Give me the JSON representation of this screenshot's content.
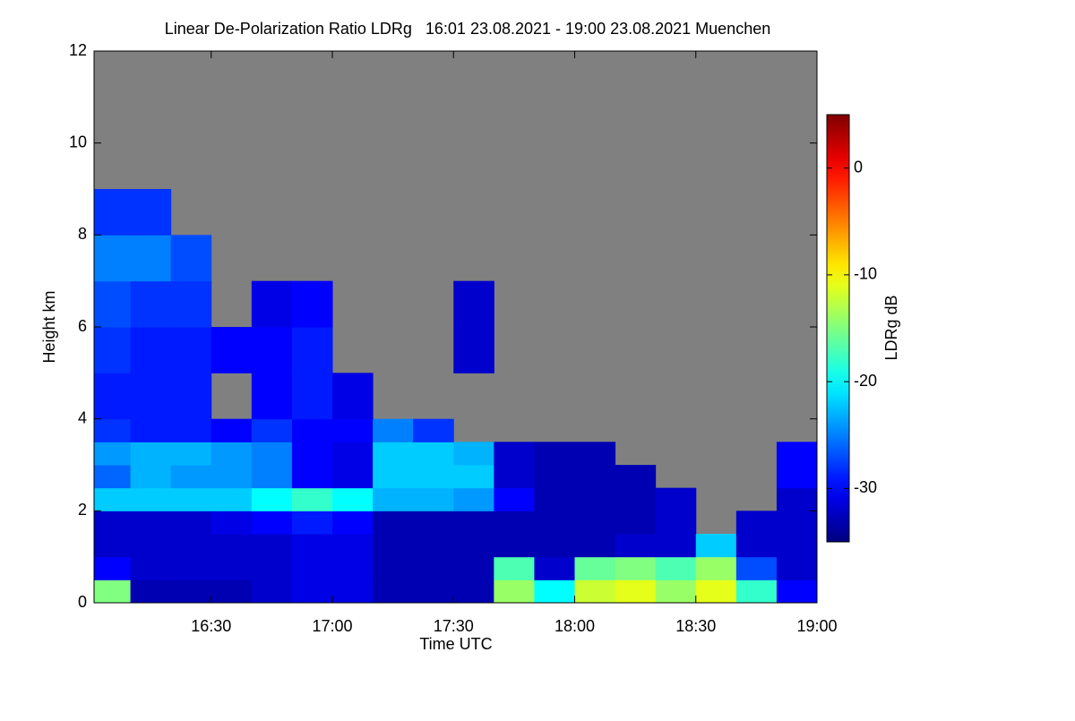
{
  "chart_data": {
    "type": "heatmap",
    "title": "Linear De-Polarization Ratio LDRg   16:01 23.08.2021 - 19:00 23.08.2021 Muenchen",
    "xlabel": "Time UTC",
    "ylabel": "Height km",
    "colorbar_label": "LDRg dB",
    "colormap": "jet",
    "nodata_color": "#808080",
    "xlim": [
      961,
      1140
    ],
    "xticks": [
      {
        "value": 990,
        "label": "16:30"
      },
      {
        "value": 1020,
        "label": "17:00"
      },
      {
        "value": 1050,
        "label": "17:30"
      },
      {
        "value": 1080,
        "label": "18:00"
      },
      {
        "value": 1110,
        "label": "18:30"
      },
      {
        "value": 1140,
        "label": "19:00"
      }
    ],
    "ylim": [
      0,
      12
    ],
    "yticks": [
      0,
      2,
      4,
      6,
      8,
      10,
      12
    ],
    "clim": [
      -35,
      5
    ],
    "cticks": [
      -30,
      -20,
      -10,
      0
    ],
    "x_edges": [
      961,
      970,
      980,
      990,
      1000,
      1010,
      1020,
      1030,
      1040,
      1050,
      1060,
      1070,
      1080,
      1090,
      1100,
      1110,
      1120,
      1130,
      1140
    ],
    "y_edges": [
      0,
      0.5,
      1,
      1.5,
      2,
      2.5,
      3,
      3.5,
      4,
      5,
      6,
      7,
      8,
      9
    ],
    "z": [
      [
        -15,
        -33,
        -33,
        -33,
        -32,
        -31,
        -31,
        -33,
        -33,
        -33,
        -14,
        -20,
        -12,
        -11,
        -14,
        -11,
        -18,
        -30
      ],
      [
        -30,
        -32,
        -32,
        -32,
        -32,
        -31,
        -31,
        -33,
        -33,
        -33,
        -17,
        -32,
        -16,
        -15,
        -17,
        -14,
        -27,
        -32
      ],
      [
        -32,
        -32,
        -32,
        -32,
        -32,
        -31,
        -31,
        -33,
        -33,
        -33,
        -33,
        -33,
        -33,
        -32,
        -32,
        -22,
        -32,
        -32
      ],
      [
        -32,
        -32,
        -32,
        -31,
        -30,
        -29,
        -30,
        -33,
        -33,
        -33,
        -33,
        -33,
        -33,
        -33,
        -32,
        null,
        -32,
        -32
      ],
      [
        -22,
        -22,
        -22,
        -22,
        -20,
        -18,
        -20,
        -23,
        -23,
        -24,
        -30,
        -33,
        -33,
        -33,
        -32,
        null,
        null,
        -32
      ],
      [
        -26,
        -23,
        -24,
        -24,
        -25,
        -30,
        -31,
        -22,
        -22,
        -22,
        -32,
        -33,
        -33,
        -33,
        null,
        null,
        null,
        -30
      ],
      [
        -24,
        -23,
        -23,
        -24,
        -25,
        -30,
        -31,
        -22,
        -22,
        -23,
        -32,
        -33,
        -33,
        null,
        null,
        null,
        null,
        -30
      ],
      [
        -28,
        -29,
        -29,
        -30,
        -28,
        -30,
        -30,
        -25,
        -28,
        null,
        null,
        null,
        null,
        null,
        null,
        null,
        null,
        null
      ],
      [
        -29,
        -29,
        -29,
        null,
        -30,
        -29,
        -31,
        null,
        null,
        null,
        null,
        null,
        null,
        null,
        null,
        null,
        null,
        null
      ],
      [
        -28,
        -29,
        -29,
        -30,
        -30,
        -29,
        null,
        null,
        null,
        -32,
        null,
        null,
        null,
        null,
        null,
        null,
        null,
        null
      ],
      [
        -27,
        -28,
        -28,
        null,
        -31,
        -30,
        null,
        null,
        null,
        -32,
        null,
        null,
        null,
        null,
        null,
        null,
        null,
        null
      ],
      [
        -25,
        -25,
        -27,
        null,
        null,
        null,
        null,
        null,
        null,
        null,
        null,
        null,
        null,
        null,
        null,
        null,
        null,
        null
      ],
      [
        -28,
        -28,
        null,
        null,
        null,
        null,
        null,
        null,
        null,
        null,
        null,
        null,
        null,
        null,
        null,
        null,
        null,
        null
      ]
    ]
  }
}
